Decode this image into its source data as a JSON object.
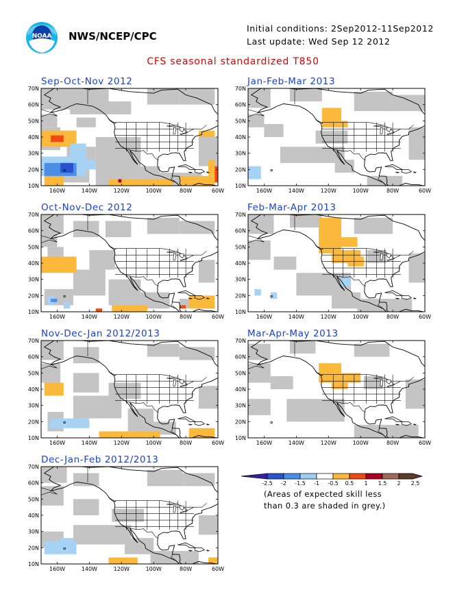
{
  "header": {
    "org": "NWS/NCEP/CPC",
    "init_line": "Initial conditions: 2Sep2012-11Sep2012",
    "update_line": "Last update: Wed Sep 12 2012",
    "logo_name": "noaa-logo"
  },
  "title": "CFS seasonal standardized T850",
  "axes": {
    "lat_labels": [
      "70N",
      "60N",
      "50N",
      "40N",
      "30N",
      "20N",
      "10N"
    ],
    "lon_labels": [
      "160W",
      "140W",
      "120W",
      "100W",
      "80W",
      "60W"
    ]
  },
  "panels": [
    {
      "title": "Sep-Oct-Nov 2012"
    },
    {
      "title": "Jan-Feb-Mar 2013"
    },
    {
      "title": "Oct-Nov-Dec 2012"
    },
    {
      "title": "Feb-Mar-Apr 2013"
    },
    {
      "title": "Nov-Dec-Jan 2012/2013"
    },
    {
      "title": "Mar-Apr-May 2013"
    },
    {
      "title": "Dec-Jan-Feb 2012/2013"
    }
  ],
  "colorbar": {
    "labels": [
      "-2.5",
      "-2",
      "-1.5",
      "-1",
      "-0.5",
      "0.5",
      "1",
      "1.5",
      "2",
      "2.5"
    ],
    "colors": [
      "#3a1ea8",
      "#2a52cc",
      "#4b8ee8",
      "#9ccdf2",
      "#ffffff",
      "#fbb93c",
      "#f04a14",
      "#a8001e",
      "#a26a5a",
      "#5c3a2c"
    ]
  },
  "note": {
    "line1": "(Areas of expected skill less",
    "line2": "than 0.3 are shaded in grey.)"
  },
  "map_colors": {
    "grey": "#c4c4c4",
    "orange": "#fbb93c",
    "red": "#f04a14",
    "darkred": "#a8001e",
    "lightblue": "#a6d2f4",
    "blue": "#4b8ee8",
    "darkblue": "#2a52cc"
  }
}
